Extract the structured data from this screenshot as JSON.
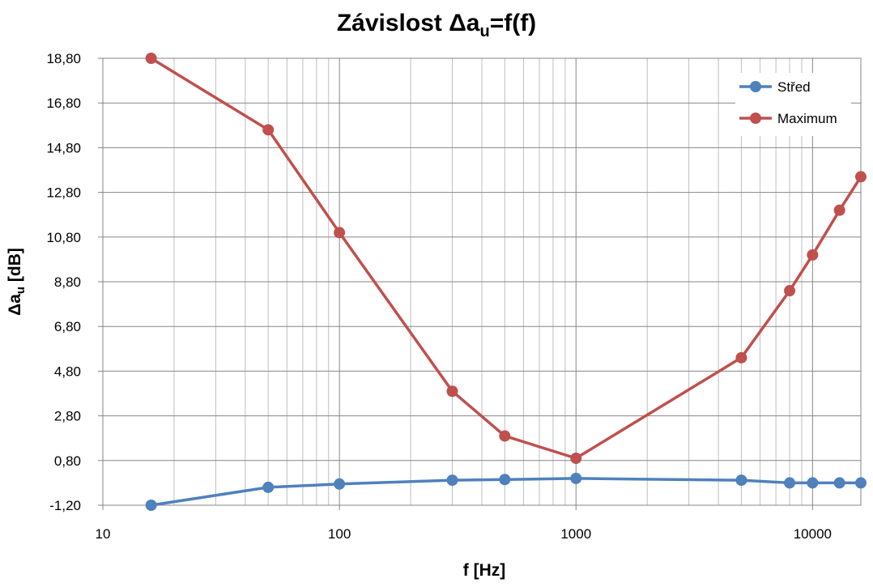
{
  "chart_data": {
    "type": "line",
    "title": "Závislost Δa",
    "title_sub": "u",
    "title_suffix": "=f(f)",
    "xlabel": "f [Hz]",
    "ylabel": "Δa",
    "ylabel_sub": "u",
    "ylabel_suffix": " [dB]",
    "x_scale": "log",
    "xlim": [
      10,
      16000
    ],
    "ylim": [
      -1.2,
      18.8
    ],
    "x_ticks": [
      10,
      100,
      1000,
      10000
    ],
    "x_tick_labels": [
      "10",
      "100",
      "1000",
      "10000"
    ],
    "y_ticks": [
      -1.2,
      0.8,
      2.8,
      4.8,
      6.8,
      8.8,
      10.8,
      12.8,
      14.8,
      16.8,
      18.8
    ],
    "y_tick_labels": [
      "-1,20",
      "0,80",
      "2,80",
      "4,80",
      "6,80",
      "8,80",
      "10,80",
      "12,80",
      "14,80",
      "16,80",
      "18,80"
    ],
    "grid": "on (major and minor, log x)",
    "legend_position": "top-right",
    "series": [
      {
        "name": "Střed",
        "color": "#4f81bd",
        "x": [
          16,
          50,
          100,
          300,
          500,
          1000,
          5000,
          8000,
          10000,
          13000,
          16000
        ],
        "y": [
          -1.2,
          -0.4,
          -0.25,
          -0.08,
          -0.05,
          0.0,
          -0.08,
          -0.2,
          -0.2,
          -0.2,
          -0.2
        ]
      },
      {
        "name": "Maximum",
        "color": "#c0504d",
        "x": [
          16,
          50,
          100,
          300,
          500,
          1000,
          5000,
          8000,
          10000,
          13000,
          16000
        ],
        "y": [
          18.8,
          15.6,
          11.0,
          3.9,
          1.9,
          0.9,
          5.4,
          8.4,
          10.0,
          12.0,
          13.5
        ]
      }
    ]
  }
}
